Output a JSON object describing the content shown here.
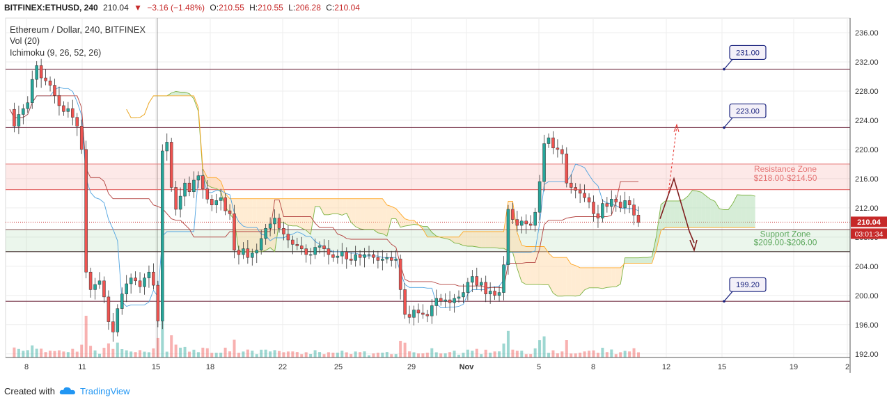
{
  "header": {
    "symbol": "BITFINEX:ETHUSD, 240",
    "last": "210.04",
    "change": "−3.16 (−1.48%)",
    "o_label": "O:",
    "o": "210.55",
    "h_label": "H:",
    "h": "210.55",
    "l_label": "L:",
    "l": "206.28",
    "c_label": "C:",
    "c": "210.04"
  },
  "legend": {
    "title": "Ethereum / Dollar, 240, BITFINEX",
    "vol": "Vol (20)",
    "ichimoku": "Ichimoku (9, 26, 52, 26)"
  },
  "footer": {
    "created_with": "Created with",
    "brand": "TradingView"
  },
  "colors": {
    "up": "#26a69a",
    "down": "#ef5350",
    "level": "#7b3b4f",
    "resistance": "#e57373",
    "support": "#5fa95f",
    "cloud_green": "#a5d6a7",
    "cloud_orange": "#ffd59e",
    "tenkan": "#4fa3e0",
    "kijun": "#b3423f",
    "lagging": "#43a047",
    "label_border": "#1a237e"
  },
  "chart_data": {
    "type": "candlestick",
    "y_axis": {
      "ticks": [
        "236.00",
        "232.00",
        "228.00",
        "224.00",
        "220.00",
        "216.00",
        "212.00",
        "208.00",
        "204.00",
        "200.00",
        "196.00",
        "192.00"
      ]
    },
    "x_axis": {
      "ticks": [
        "8",
        "11",
        "15",
        "18",
        "22",
        "25",
        "29",
        "Nov",
        "5",
        "8",
        "12",
        "15",
        "19",
        "2"
      ]
    },
    "price_labels": {
      "last": "210.04",
      "countdown": "03:01:34"
    },
    "levels": [
      {
        "value": 231.0,
        "label": "231.00"
      },
      {
        "value": 223.0,
        "label": "223.00"
      },
      {
        "value": 199.2,
        "label": "199.20"
      }
    ],
    "zones": [
      {
        "name": "Resistance Zone",
        "range_label": "$218.00-$214.50",
        "top": 218.0,
        "bottom": 214.5
      },
      {
        "name": "Support Zone",
        "range_label": "$209.00-$206.00",
        "top": 209.0,
        "bottom": 206.0
      }
    ],
    "close_series": [
      225.5,
      223.2,
      224.8,
      225.6,
      226.4,
      229.6,
      231.5,
      229.8,
      229.4,
      228.8,
      227.4,
      226.0,
      225.2,
      225.6,
      224.4,
      223.2,
      220.0,
      203.2,
      200.8,
      201.5,
      202.0,
      199.8,
      196.4,
      195.0,
      198.2,
      200.2,
      201.6,
      202.4,
      202.0,
      201.2,
      202.4,
      203.2,
      201.4,
      196.5,
      219.8,
      221.0,
      214.8,
      211.8,
      213.6,
      215.4,
      214.2,
      215.8,
      216.4,
      214.6,
      213.2,
      212.4,
      213.0,
      213.4,
      211.6,
      211.2,
      206.2,
      205.6,
      206.4,
      205.2,
      205.8,
      206.2,
      207.8,
      209.2,
      209.8,
      210.6,
      209.2,
      208.4,
      207.6,
      207.0,
      206.8,
      206.4,
      205.6,
      205.6,
      206.6,
      206.8,
      206.4,
      205.6,
      205.2,
      205.4,
      206.0,
      205.0,
      204.8,
      205.6,
      205.2,
      205.6,
      205.6,
      205.2,
      204.8,
      205.0,
      205.2,
      204.8,
      205.0,
      200.8,
      197.4,
      197.0,
      198.0,
      197.6,
      197.4,
      197.2,
      198.6,
      199.6,
      199.2,
      199.4,
      199.0,
      199.6,
      199.8,
      200.4,
      201.8,
      202.6,
      201.4,
      201.8,
      200.2,
      200.6,
      200.0,
      200.4,
      204.2,
      211.8,
      210.4,
      209.6,
      210.2,
      209.8,
      209.6,
      211.4,
      215.6,
      220.8,
      221.6,
      220.2,
      220.0,
      219.4,
      215.4,
      214.8,
      214.4,
      214.0,
      213.4,
      212.8,
      211.2,
      210.6,
      212.6,
      212.2,
      213.2,
      212.8,
      212.0,
      213.0,
      212.4,
      211.0,
      210.0
    ]
  }
}
